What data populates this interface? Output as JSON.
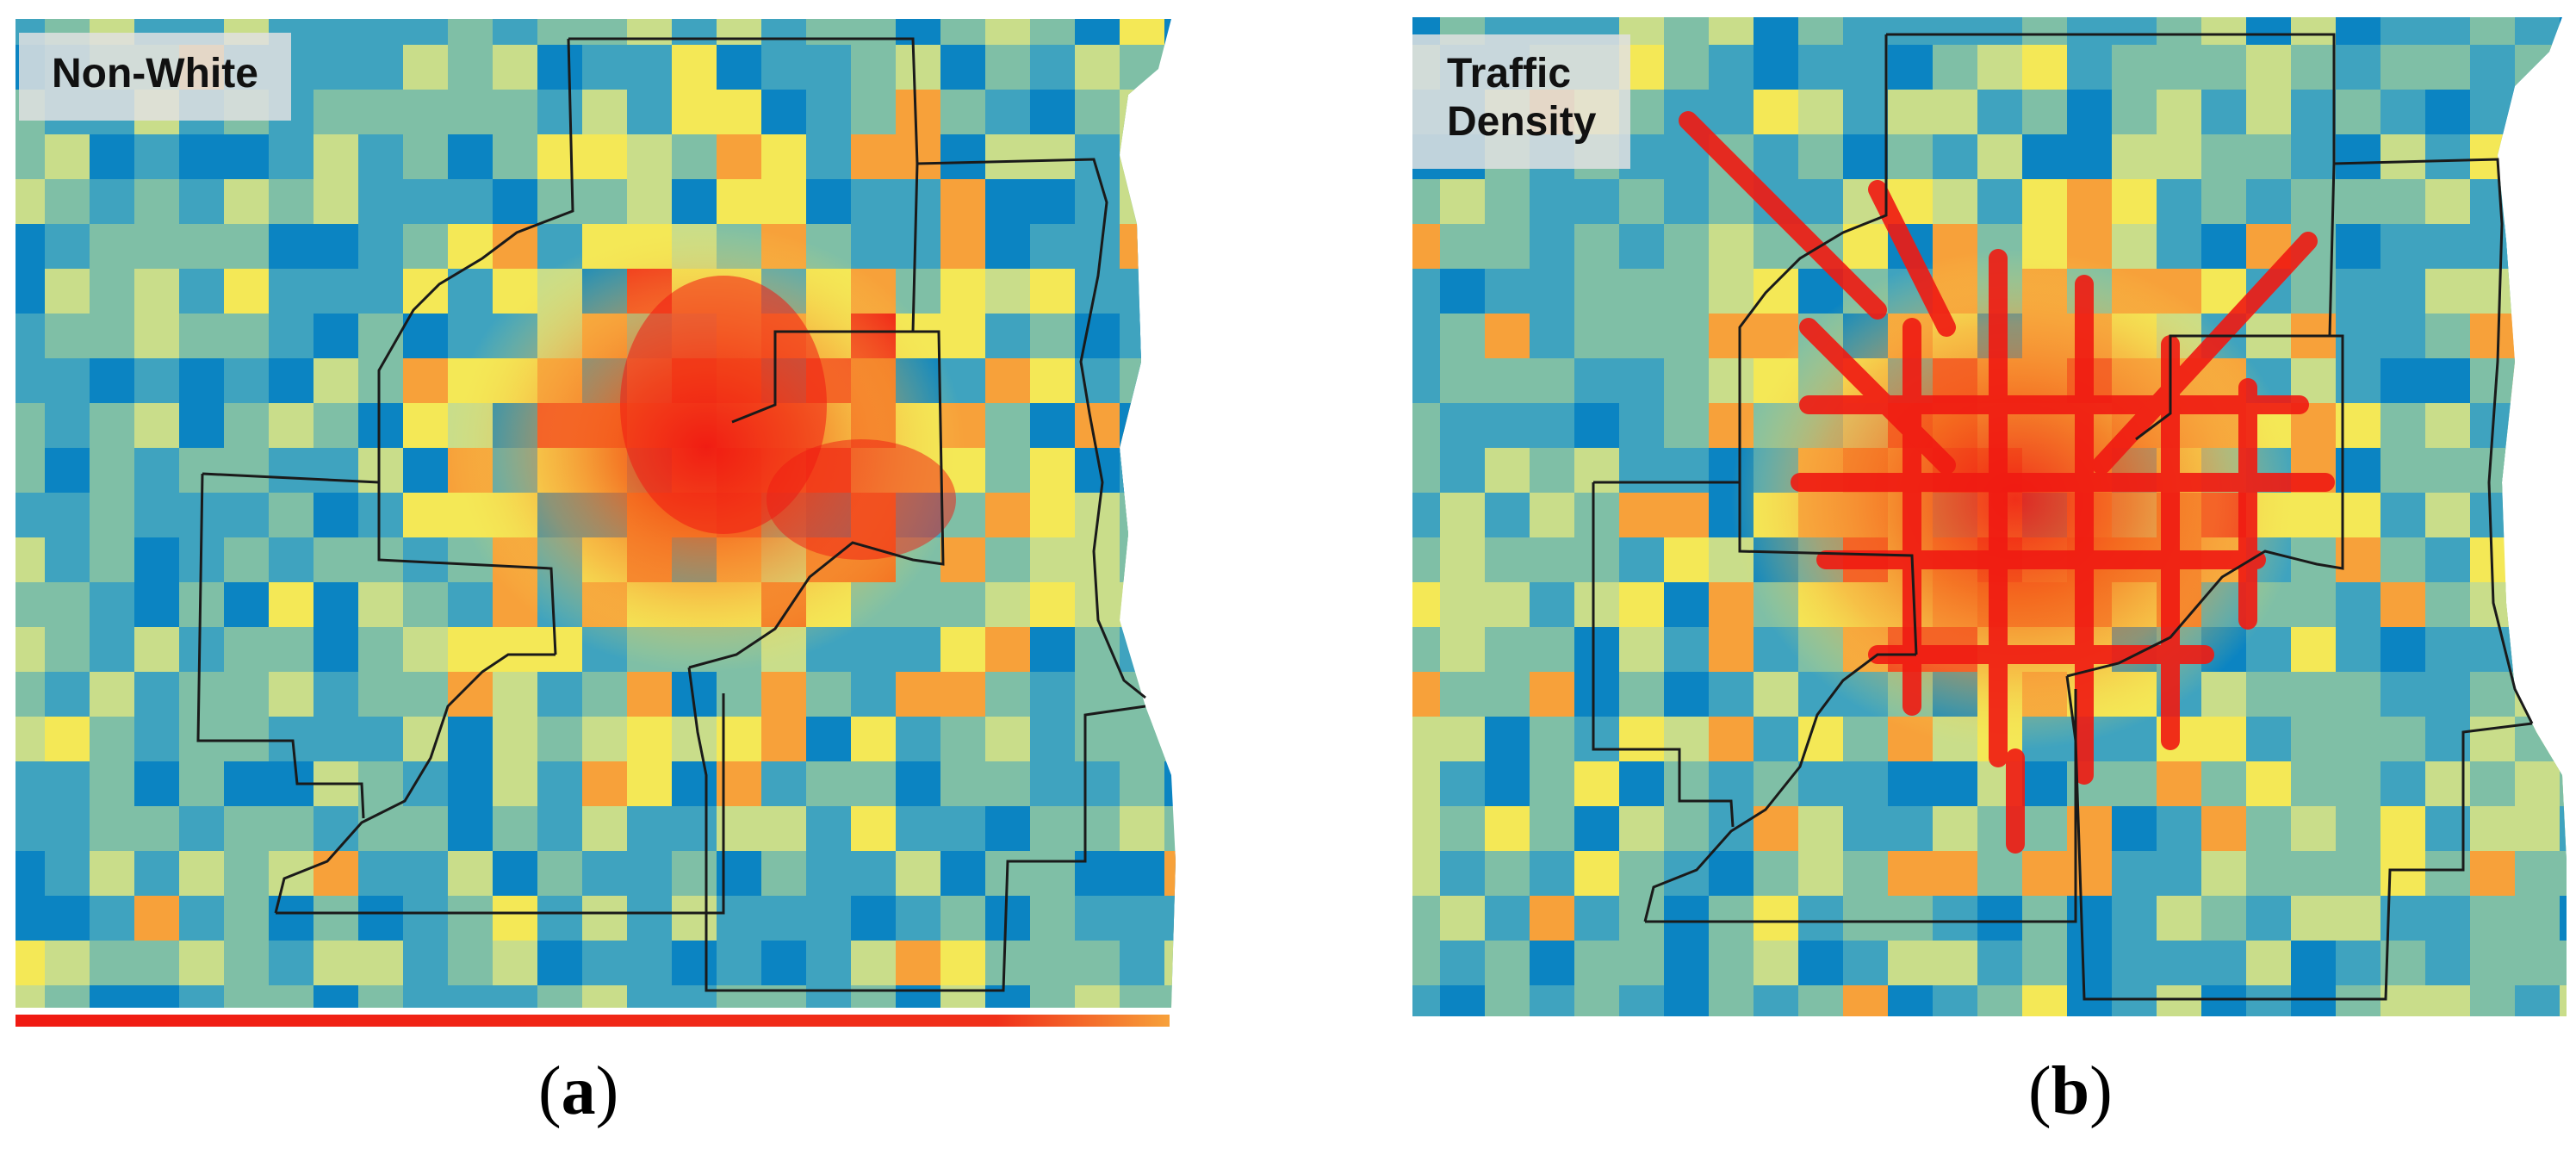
{
  "panels": [
    {
      "label": "Non-White",
      "caption_letter": "a",
      "colorbar": true,
      "palette": {
        "low": "#0b84c2",
        "mid_low": "#3fa3bf",
        "mid": "#7fbfa6",
        "mid_high": "#c9dd8a",
        "high": "#f4e856",
        "orange": "#f7a13a",
        "hot": "#f46a1f",
        "red": "#f01a12"
      }
    },
    {
      "label_lines": [
        "Traffic",
        "Density"
      ],
      "caption_letter": "b",
      "colorbar": false,
      "palette": {
        "low": "#0b84c2",
        "mid_low": "#3fa3bf",
        "mid": "#7fbfa6",
        "mid_high": "#c9dd8a",
        "high": "#f4e856",
        "orange": "#f7a13a",
        "hot": "#f46a1f",
        "red": "#f01a12"
      }
    }
  ]
}
